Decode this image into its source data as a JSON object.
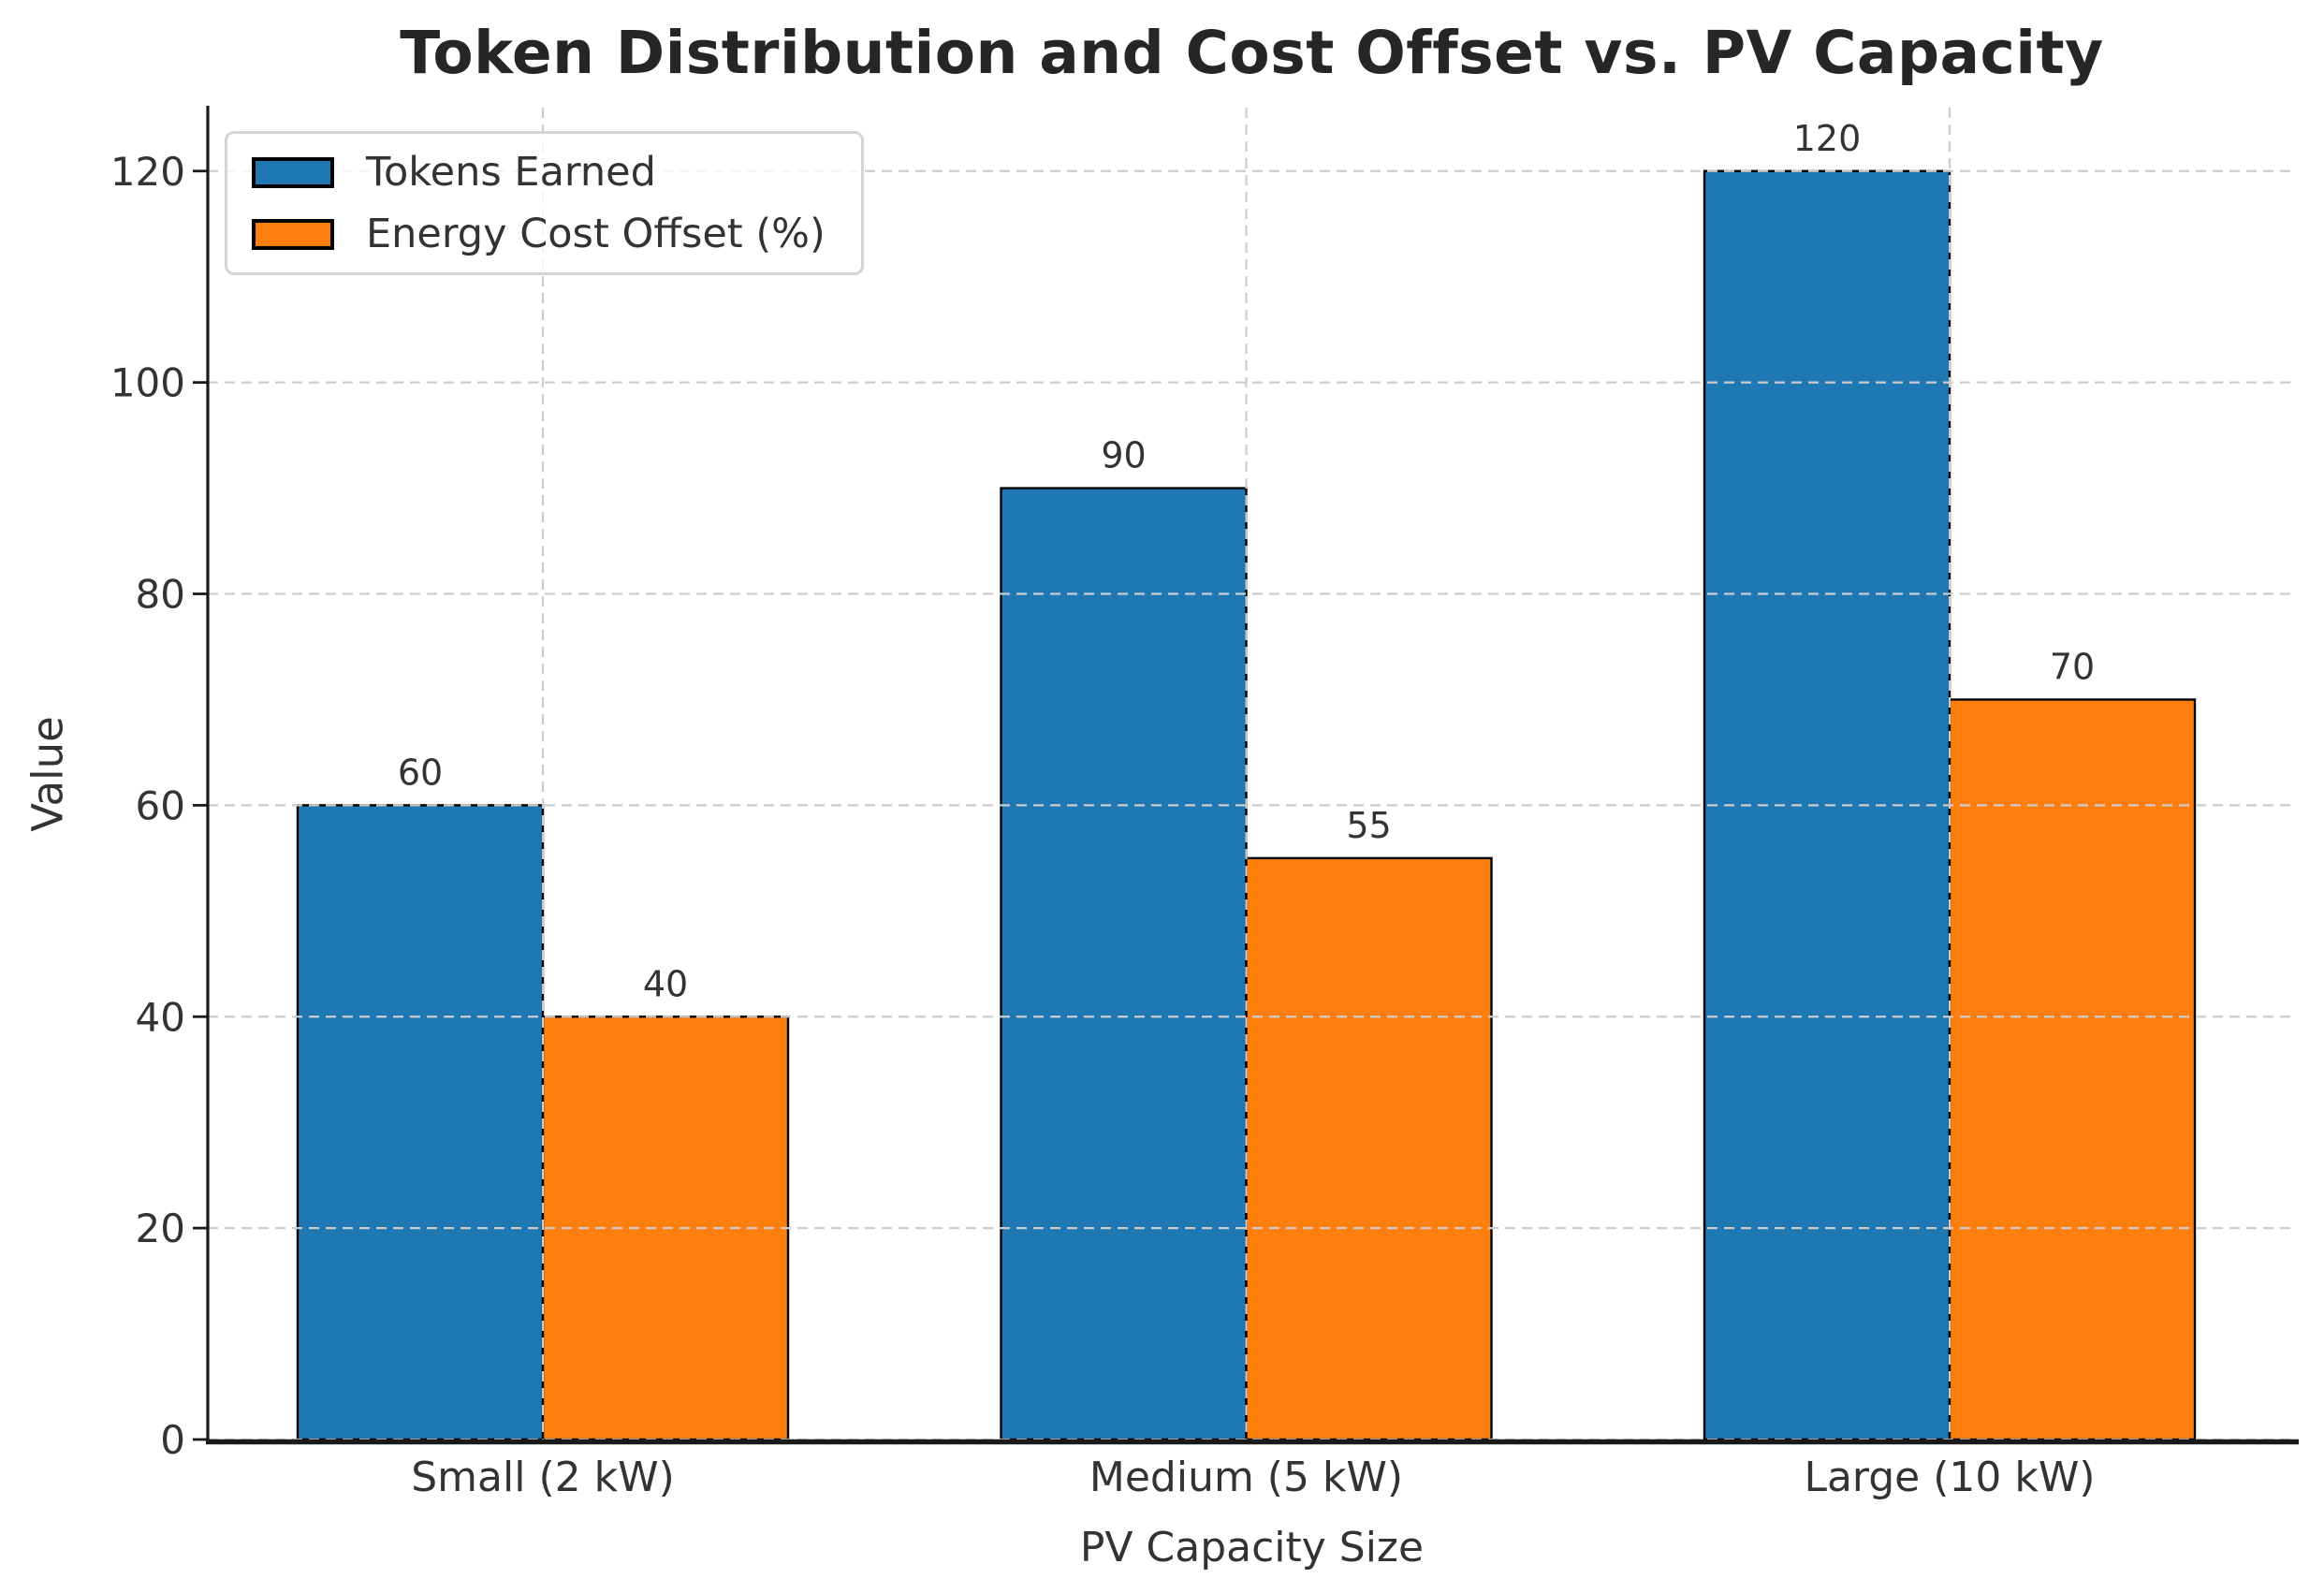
{
  "chart_data": {
    "type": "bar",
    "title": "Token Distribution and Cost Offset vs. PV Capacity",
    "xlabel": "PV Capacity Size",
    "ylabel": "Value",
    "categories": [
      "Small (2 kW)",
      "Medium (5 kW)",
      "Large (10 kW)"
    ],
    "series": [
      {
        "name": "Tokens Earned",
        "color": "#1f77b4",
        "values": [
          60,
          90,
          120
        ]
      },
      {
        "name": "Energy Cost Offset (%)",
        "color": "#ff7f0e",
        "values": [
          40,
          55,
          70
        ]
      }
    ],
    "bar_value_labels": [
      [
        "60",
        "90",
        "120"
      ],
      [
        "40",
        "55",
        "70"
      ]
    ],
    "yticks": [
      "0",
      "20",
      "40",
      "60",
      "80",
      "100",
      "120"
    ],
    "ylim": [
      0,
      126
    ],
    "legend_position": "upper left",
    "grid": {
      "visible": true,
      "dashed": true,
      "drawn_above_bars": true
    },
    "colors": {
      "grid": "#cccccc",
      "bar_edge": "#000000",
      "axis": "#1a1a1a",
      "text": "#333333",
      "title_text": "#262626"
    }
  }
}
